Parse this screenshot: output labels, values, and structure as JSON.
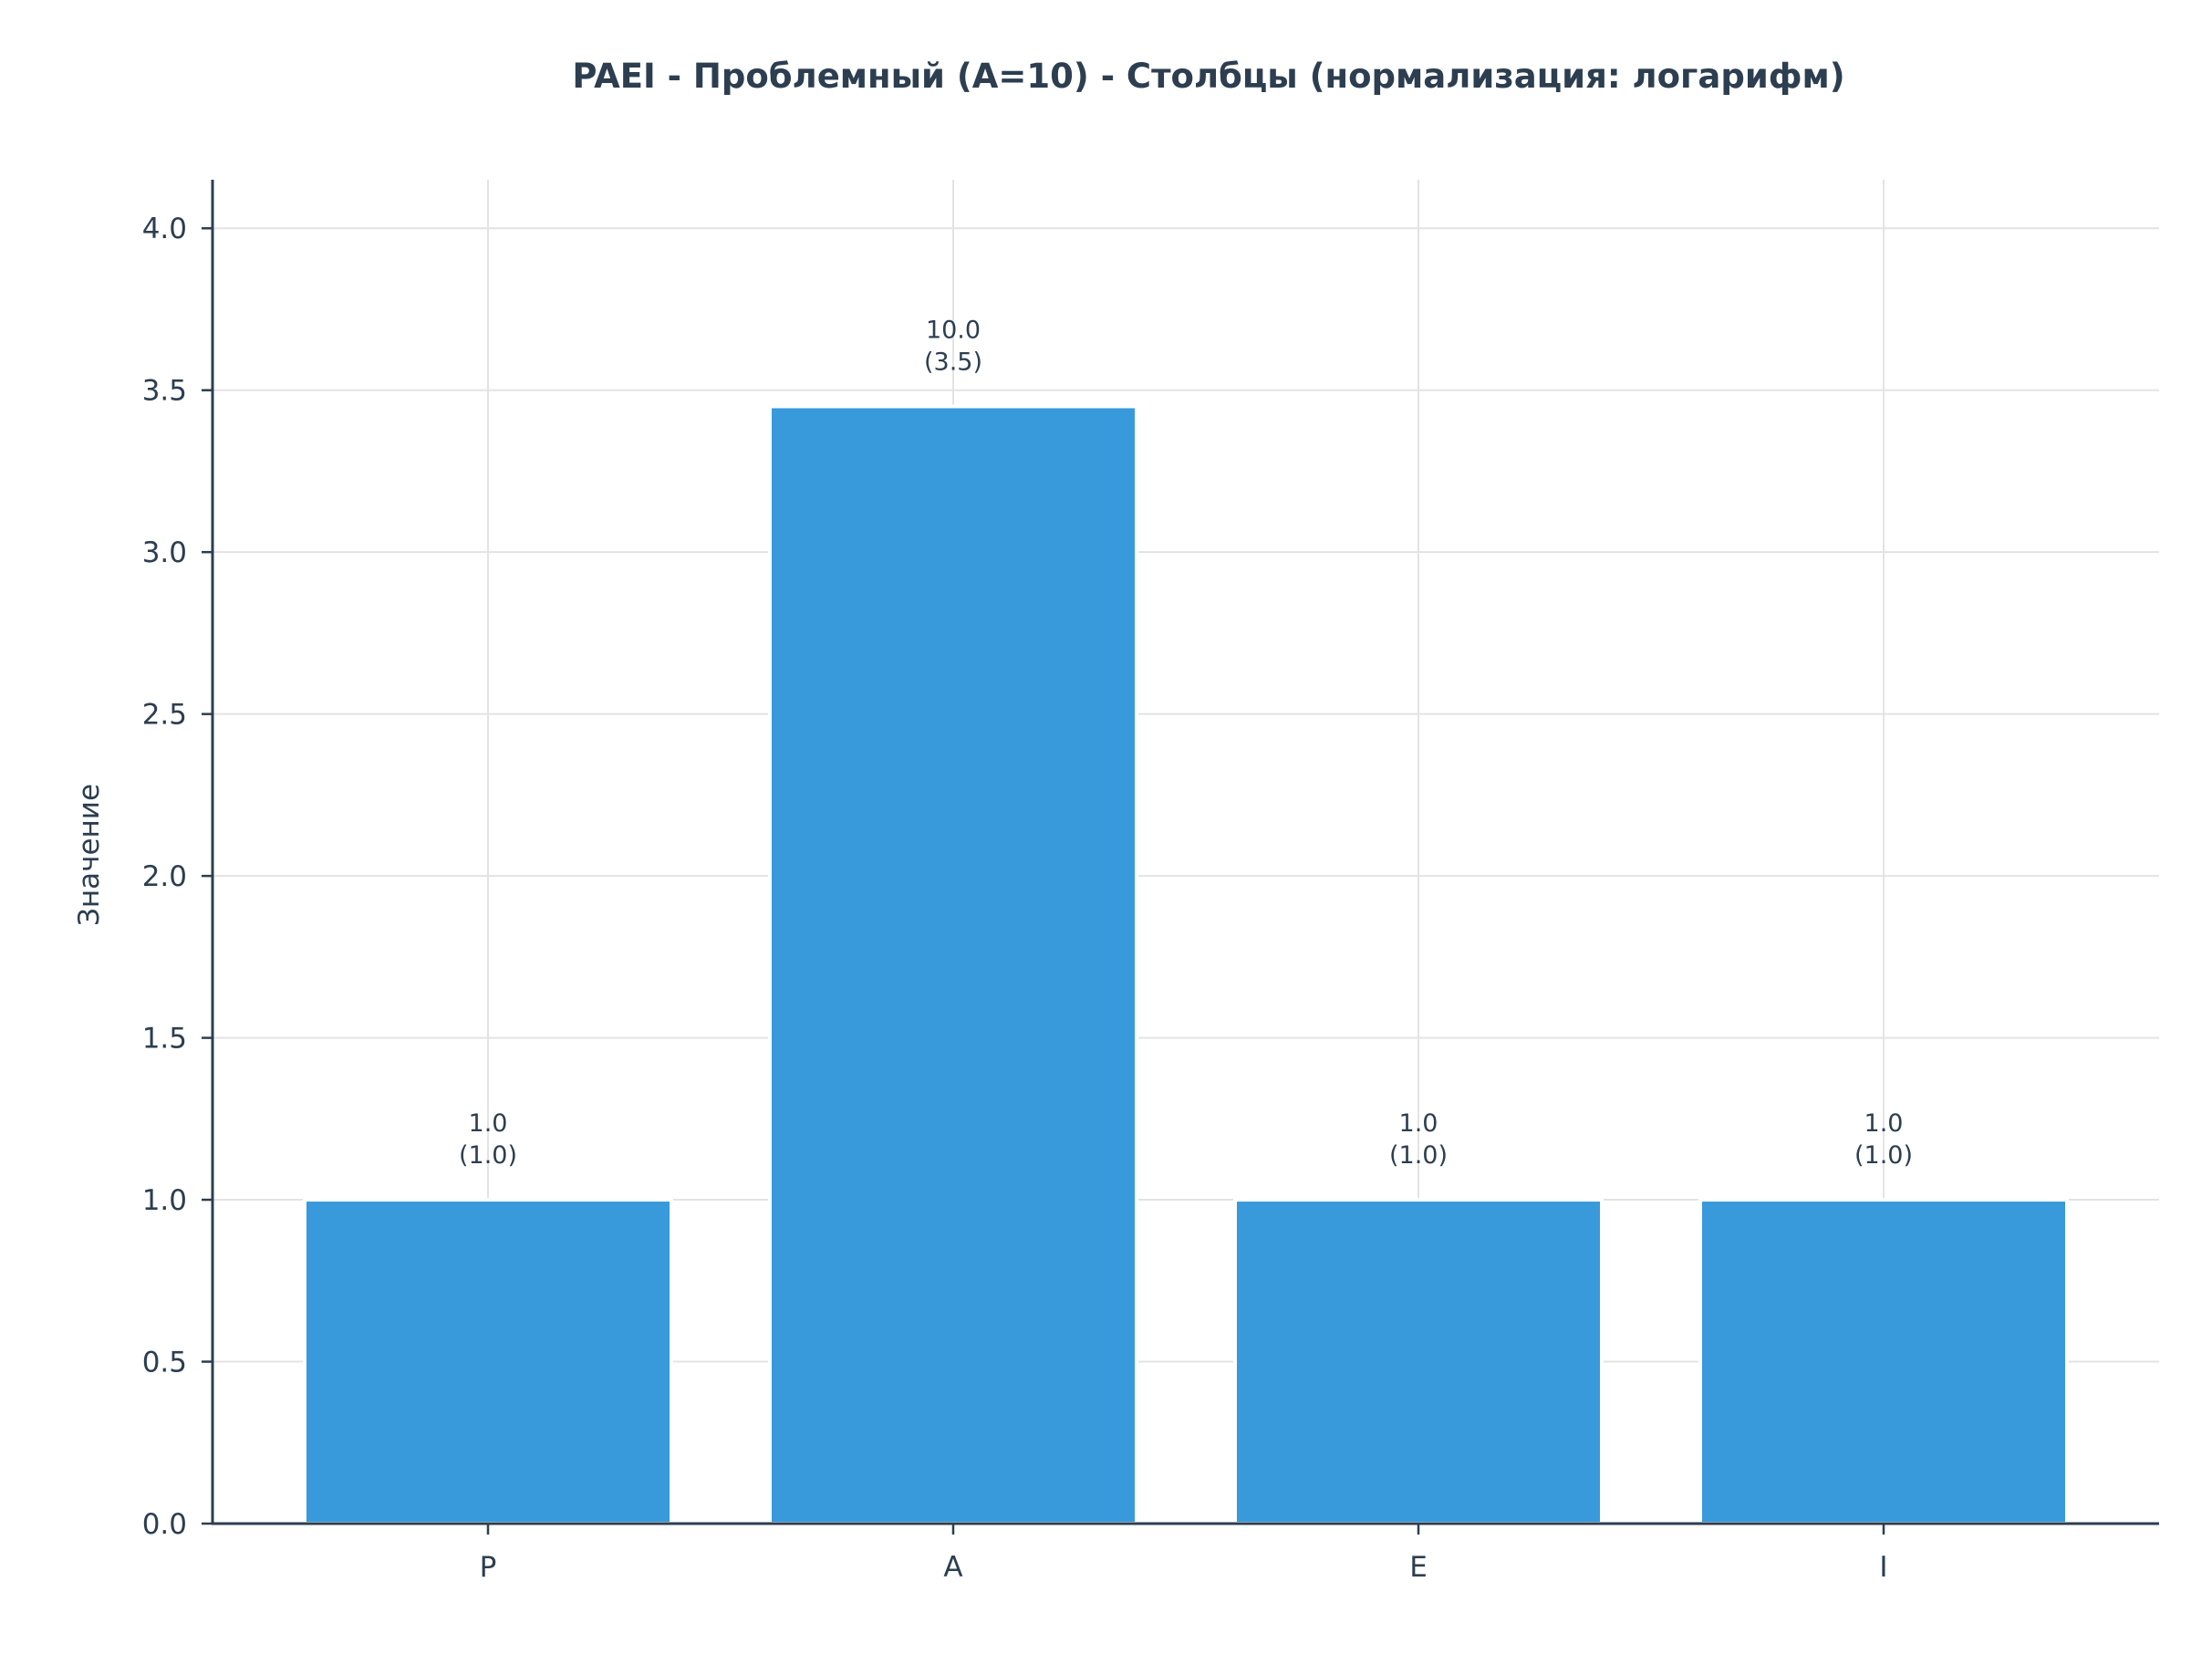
{
  "chart_data": {
    "type": "bar",
    "title": "PAEI - Проблемный (A=10) - Столбцы (нормализация: логарифм)",
    "xlabel": "",
    "ylabel": "Значение",
    "categories": [
      "P",
      "A",
      "E",
      "I"
    ],
    "values": [
      1.0,
      3.45,
      1.0,
      1.0
    ],
    "data_labels": [
      [
        "1.0",
        "(1.0)"
      ],
      [
        "10.0",
        "(3.5)"
      ],
      [
        "1.0",
        "(1.0)"
      ],
      [
        "1.0",
        "(1.0)"
      ]
    ],
    "ylim": [
      0,
      4.15
    ],
    "yticks": [
      "0.0",
      "0.5",
      "1.0",
      "1.5",
      "2.0",
      "2.5",
      "3.0",
      "3.5",
      "4.0"
    ],
    "grid": true,
    "colors": {
      "bar": "#3899db",
      "axis": "#2c3e50",
      "grid": "#e3e3e3",
      "text": "#2c3e50"
    }
  }
}
